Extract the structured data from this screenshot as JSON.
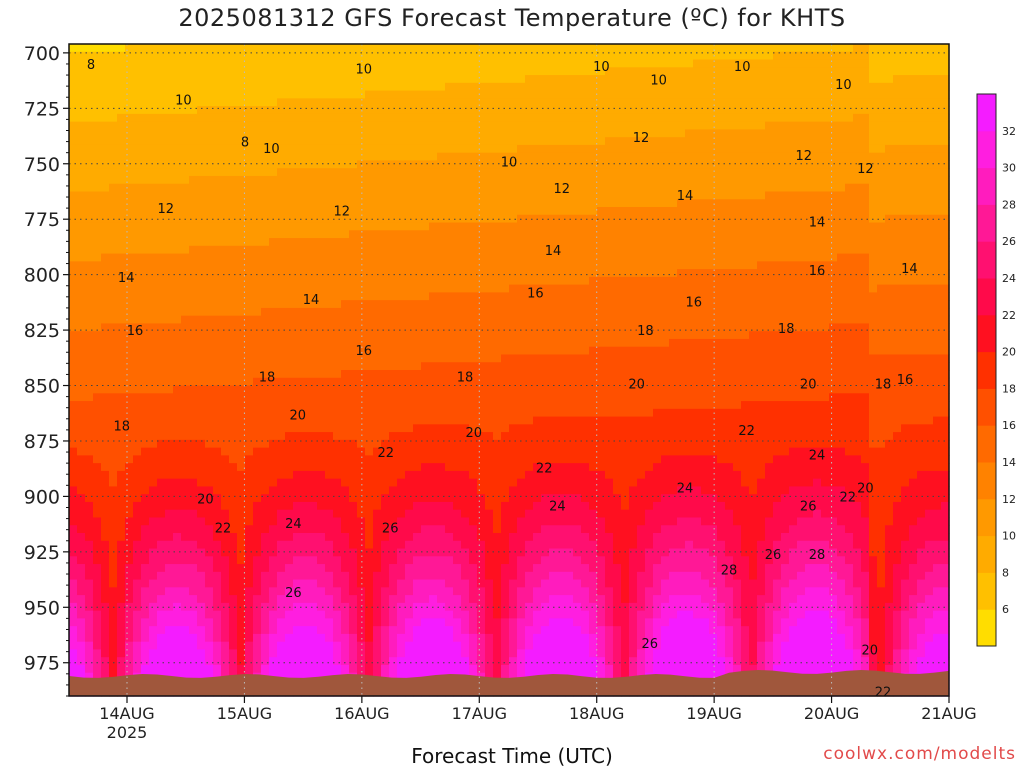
{
  "chart_data": {
    "type": "heatmap",
    "title": "2025081312 GFS Forecast Temperature (ºC) for KHTS",
    "xlabel": "Forecast Time (UTC)",
    "ylabel": "",
    "credit": "coolwx.com/modelts",
    "yaxis": {
      "ticks": [
        700,
        725,
        750,
        775,
        800,
        825,
        850,
        875,
        900,
        925,
        950,
        975
      ],
      "ylim": [
        696,
        990
      ],
      "inverted": true,
      "unit": "hPa"
    },
    "xaxis": {
      "ticks": [
        "14AUG",
        "15AUG",
        "16AUG",
        "17AUG",
        "18AUG",
        "19AUG",
        "20AUG",
        "21AUG"
      ],
      "tick_sublabel": "2025",
      "start": "2025-08-13 12Z",
      "end": "2025-08-21 00Z"
    },
    "grid": true,
    "colorbar": {
      "levels": [
        4,
        6,
        8,
        10,
        12,
        14,
        16,
        18,
        20,
        22,
        24,
        26,
        28,
        30,
        32,
        34
      ],
      "labels": [
        6,
        8,
        10,
        12,
        14,
        16,
        18,
        20,
        22,
        24,
        26,
        28,
        30,
        32
      ],
      "colors": [
        "#ffdd00",
        "#ffc000",
        "#ffab00",
        "#ff9900",
        "#ff8200",
        "#ff6a00",
        "#ff5000",
        "#ff3000",
        "#ff1020",
        "#ff0a4a",
        "#ff1070",
        "#ff1896",
        "#ff1cbe",
        "#ff1ee0",
        "#f41cff"
      ]
    },
    "contour_labels": [
      {
        "text": "8",
        "t": 0.5,
        "p": 705
      },
      {
        "text": "10",
        "t": 2.6,
        "p": 721
      },
      {
        "text": "8",
        "t": 4.0,
        "p": 740
      },
      {
        "text": "10",
        "t": 4.6,
        "p": 743
      },
      {
        "text": "10",
        "t": 6.7,
        "p": 707
      },
      {
        "text": "12",
        "t": 2.2,
        "p": 770
      },
      {
        "text": "12",
        "t": 6.2,
        "p": 771
      },
      {
        "text": "10",
        "t": 10.0,
        "p": 749
      },
      {
        "text": "12",
        "t": 11.2,
        "p": 761
      },
      {
        "text": "10",
        "t": 12.1,
        "p": 706
      },
      {
        "text": "10",
        "t": 13.4,
        "p": 712
      },
      {
        "text": "12",
        "t": 13.0,
        "p": 738
      },
      {
        "text": "14",
        "t": 14.0,
        "p": 764
      },
      {
        "text": "10",
        "t": 15.3,
        "p": 706
      },
      {
        "text": "12",
        "t": 16.7,
        "p": 746
      },
      {
        "text": "10",
        "t": 17.6,
        "p": 714
      },
      {
        "text": "12",
        "t": 18.1,
        "p": 752
      },
      {
        "text": "14",
        "t": 1.3,
        "p": 801
      },
      {
        "text": "14",
        "t": 5.5,
        "p": 811
      },
      {
        "text": "16",
        "t": 10.6,
        "p": 808
      },
      {
        "text": "14",
        "t": 11.0,
        "p": 789
      },
      {
        "text": "16",
        "t": 14.2,
        "p": 812
      },
      {
        "text": "16",
        "t": 17.0,
        "p": 798
      },
      {
        "text": "14",
        "t": 17.0,
        "p": 776
      },
      {
        "text": "14",
        "t": 19.1,
        "p": 797
      },
      {
        "text": "16",
        "t": 1.5,
        "p": 825
      },
      {
        "text": "16",
        "t": 6.7,
        "p": 834
      },
      {
        "text": "18",
        "t": 4.5,
        "p": 846
      },
      {
        "text": "18",
        "t": 9.0,
        "p": 846
      },
      {
        "text": "18",
        "t": 13.1,
        "p": 825
      },
      {
        "text": "18",
        "t": 16.3,
        "p": 824
      },
      {
        "text": "18",
        "t": 18.5,
        "p": 849
      },
      {
        "text": "16",
        "t": 19.0,
        "p": 847
      },
      {
        "text": "18",
        "t": 1.2,
        "p": 868
      },
      {
        "text": "20",
        "t": 5.2,
        "p": 863
      },
      {
        "text": "20",
        "t": 9.2,
        "p": 871
      },
      {
        "text": "20",
        "t": 12.9,
        "p": 849
      },
      {
        "text": "20",
        "t": 16.8,
        "p": 849
      },
      {
        "text": "22",
        "t": 7.2,
        "p": 880
      },
      {
        "text": "22",
        "t": 10.8,
        "p": 887
      },
      {
        "text": "22",
        "t": 15.4,
        "p": 870
      },
      {
        "text": "24",
        "t": 17.0,
        "p": 881
      },
      {
        "text": "20",
        "t": 3.1,
        "p": 901
      },
      {
        "text": "22",
        "t": 3.5,
        "p": 914
      },
      {
        "text": "24",
        "t": 5.1,
        "p": 912
      },
      {
        "text": "24",
        "t": 11.1,
        "p": 904
      },
      {
        "text": "26",
        "t": 7.3,
        "p": 914
      },
      {
        "text": "24",
        "t": 14.0,
        "p": 896
      },
      {
        "text": "26",
        "t": 16.8,
        "p": 904
      },
      {
        "text": "20",
        "t": 18.1,
        "p": 896
      },
      {
        "text": "22",
        "t": 17.7,
        "p": 900
      },
      {
        "text": "26",
        "t": 5.1,
        "p": 943
      },
      {
        "text": "28",
        "t": 15.0,
        "p": 933
      },
      {
        "text": "26",
        "t": 16.0,
        "p": 926
      },
      {
        "text": "28",
        "t": 17.0,
        "p": 926
      },
      {
        "text": "26",
        "t": 13.2,
        "p": 966
      },
      {
        "text": "20",
        "t": 18.2,
        "p": 969
      },
      {
        "text": "22",
        "t": 18.5,
        "p": 988
      }
    ]
  }
}
